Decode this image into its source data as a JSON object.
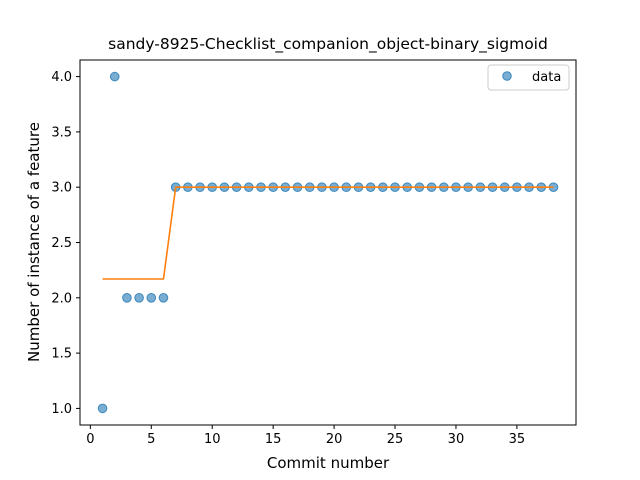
{
  "chart_data": {
    "type": "scatter",
    "title": "sandy-8925-Checklist_companion_object-binary_sigmoid",
    "xlabel": "Commit number",
    "ylabel": "Number of instance of a feature",
    "xlim": [
      -0.85,
      39.85
    ],
    "ylim": [
      0.85,
      4.15
    ],
    "xticks": [
      0,
      5,
      10,
      15,
      20,
      25,
      30,
      35
    ],
    "yticks": [
      1.0,
      1.5,
      2.0,
      2.5,
      3.0,
      3.5,
      4.0
    ],
    "ytick_labels": [
      "1.0",
      "1.5",
      "2.0",
      "2.5",
      "3.0",
      "3.5",
      "4.0"
    ],
    "grid": false,
    "legend": {
      "position": "top-right",
      "entries": [
        "data"
      ]
    },
    "series": [
      {
        "name": "data",
        "kind": "scatter",
        "color": "#1f77b4",
        "x": [
          1,
          2,
          3,
          4,
          5,
          6,
          7,
          8,
          9,
          10,
          11,
          12,
          13,
          14,
          15,
          16,
          17,
          18,
          19,
          20,
          21,
          22,
          23,
          24,
          25,
          26,
          27,
          28,
          29,
          30,
          31,
          32,
          33,
          34,
          35,
          36,
          37,
          38
        ],
        "y": [
          1,
          4,
          2,
          2,
          2,
          2,
          3,
          3,
          3,
          3,
          3,
          3,
          3,
          3,
          3,
          3,
          3,
          3,
          3,
          3,
          3,
          3,
          3,
          3,
          3,
          3,
          3,
          3,
          3,
          3,
          3,
          3,
          3,
          3,
          3,
          3,
          3,
          3
        ]
      },
      {
        "kind": "line",
        "color": "#ff7f0e",
        "x": [
          1,
          2,
          3,
          4,
          5,
          6,
          7,
          8,
          9,
          10,
          11,
          12,
          13,
          14,
          15,
          16,
          17,
          18,
          19,
          20,
          21,
          22,
          23,
          24,
          25,
          26,
          27,
          28,
          29,
          30,
          31,
          32,
          33,
          34,
          35,
          36,
          37,
          38
        ],
        "y": [
          2.17,
          2.17,
          2.17,
          2.17,
          2.17,
          2.17,
          3,
          3,
          3,
          3,
          3,
          3,
          3,
          3,
          3,
          3,
          3,
          3,
          3,
          3,
          3,
          3,
          3,
          3,
          3,
          3,
          3,
          3,
          3,
          3,
          3,
          3,
          3,
          3,
          3,
          3,
          3,
          3
        ]
      }
    ]
  }
}
